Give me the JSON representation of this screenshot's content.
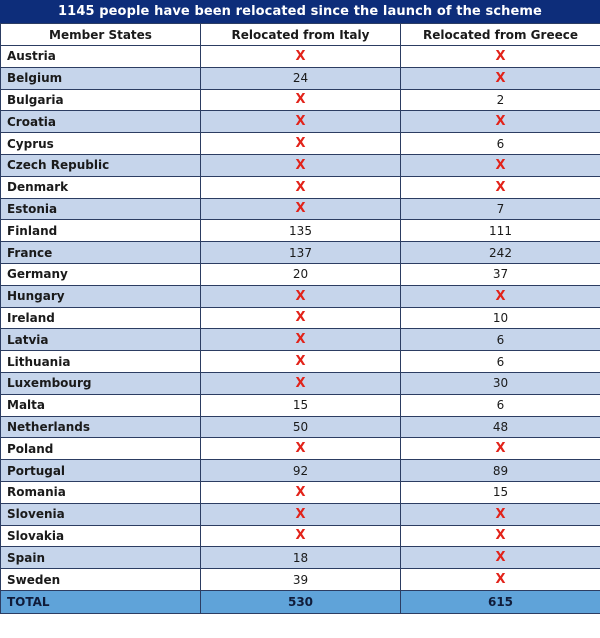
{
  "title": "1145 people have been relocated since the launch of the scheme",
  "headers": [
    "Member States",
    "Relocated from Italy",
    "Relocated from Greece"
  ],
  "none_marker": "X",
  "rows": [
    {
      "state": "Austria",
      "italy": "X",
      "greece": "X"
    },
    {
      "state": "Belgium",
      "italy": "24",
      "greece": "X"
    },
    {
      "state": "Bulgaria",
      "italy": "X",
      "greece": "2"
    },
    {
      "state": "Croatia",
      "italy": "X",
      "greece": "X"
    },
    {
      "state": "Cyprus",
      "italy": "X",
      "greece": "6"
    },
    {
      "state": "Czech Republic",
      "italy": "X",
      "greece": "X"
    },
    {
      "state": "Denmark",
      "italy": "X",
      "greece": "X"
    },
    {
      "state": "Estonia",
      "italy": "X",
      "greece": "7"
    },
    {
      "state": "Finland",
      "italy": "135",
      "greece": "111"
    },
    {
      "state": "France",
      "italy": "137",
      "greece": "242"
    },
    {
      "state": "Germany",
      "italy": "20",
      "greece": "37"
    },
    {
      "state": "Hungary",
      "italy": "X",
      "greece": "X"
    },
    {
      "state": "Ireland",
      "italy": "X",
      "greece": "10"
    },
    {
      "state": "Latvia",
      "italy": "X",
      "greece": "6"
    },
    {
      "state": "Lithuania",
      "italy": "X",
      "greece": "6"
    },
    {
      "state": "Luxembourg",
      "italy": "X",
      "greece": "30"
    },
    {
      "state": "Malta",
      "italy": "15",
      "greece": "6"
    },
    {
      "state": "Netherlands",
      "italy": "50",
      "greece": "48"
    },
    {
      "state": "Poland",
      "italy": "X",
      "greece": "X"
    },
    {
      "state": "Portugal",
      "italy": "92",
      "greece": "89"
    },
    {
      "state": "Romania",
      "italy": "X",
      "greece": "15"
    },
    {
      "state": "Slovenia",
      "italy": "X",
      "greece": "X"
    },
    {
      "state": "Slovakia",
      "italy": "X",
      "greece": "X"
    },
    {
      "state": "Spain",
      "italy": "18",
      "greece": "X"
    },
    {
      "state": "Sweden",
      "italy": "39",
      "greece": "X"
    }
  ],
  "total": {
    "label": "TOTAL",
    "italy": "530",
    "greece": "615"
  },
  "colors": {
    "title_bg": "#0d2d7a",
    "row_alt": "#c6d5eb",
    "total_bg": "#5fa3d9",
    "x_marker": "#e2231a"
  }
}
